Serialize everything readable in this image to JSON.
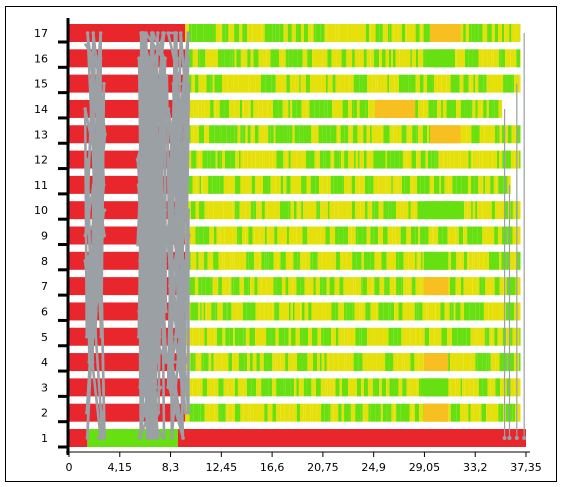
{
  "chart_data": {
    "type": "gantt-activity",
    "title": "",
    "xlabel": "",
    "ylabel": "",
    "x_ticks": [
      "0",
      "4,15",
      "8,3",
      "12,45",
      "16,6",
      "20,75",
      "24,9",
      "29,05",
      "33,2",
      "37,35"
    ],
    "x_tick_values": [
      0,
      4.15,
      8.3,
      12.45,
      16.6,
      20.75,
      24.9,
      29.05,
      33.2,
      37.35
    ],
    "xlim": [
      0,
      37.35
    ],
    "y_ticks": [
      "1",
      "2",
      "3",
      "4",
      "5",
      "6",
      "7",
      "8",
      "9",
      "10",
      "11",
      "12",
      "13",
      "14",
      "15",
      "16",
      "17"
    ],
    "rows": [
      1,
      2,
      3,
      4,
      5,
      6,
      7,
      8,
      9,
      10,
      11,
      12,
      13,
      14,
      15,
      16,
      17
    ],
    "row_end_times": [
      37.35,
      36.9,
      36.9,
      36.9,
      36.9,
      36.9,
      36.9,
      36.9,
      36.9,
      36.9,
      36.1,
      36.9,
      36.9,
      35.4,
      36.9,
      36.9,
      36.9
    ],
    "red_phase_end": [
      8.9,
      9.5,
      9.5,
      9.5,
      9.5,
      9.5,
      9.5,
      9.5,
      9.5,
      9.5,
      9.5,
      9.5,
      9.5,
      9.5,
      9.5,
      9.5,
      9.5
    ],
    "row1": {
      "green_segment": [
        1.5,
        8.9
      ],
      "red_segment": [
        8.9,
        37.35
      ]
    },
    "orange_blocks": [
      {
        "row": 14,
        "start": 25.0,
        "end": 28.3
      },
      {
        "row": 17,
        "start": 29.5,
        "end": 32.0
      },
      {
        "row": 13,
        "start": 29.5,
        "end": 32.0
      },
      {
        "row": 2,
        "start": 29.0,
        "end": 31.0
      },
      {
        "row": 7,
        "start": 29.0,
        "end": 31.0
      },
      {
        "row": 4,
        "start": 29.0,
        "end": 31.0
      }
    ],
    "green_blocks": [
      {
        "row": 16,
        "start": 29.5,
        "end": 31.5
      },
      {
        "row": 10,
        "start": 29.0,
        "end": 32.0
      },
      {
        "row": 8,
        "start": 29.0,
        "end": 31.0
      },
      {
        "row": 3,
        "start": 29.0,
        "end": 31.0
      }
    ],
    "colors": {
      "red": "#e9262c",
      "green": "#66e010",
      "yellow": "#e6e00a",
      "orange": "#f7c020",
      "white_band": "#ffffff",
      "trace": "#9aa0a4",
      "axis": "#000000"
    },
    "grid": false,
    "legend": "none"
  }
}
